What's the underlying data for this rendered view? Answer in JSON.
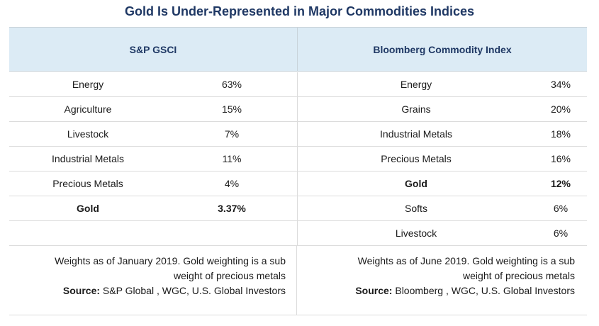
{
  "title": "Gold Is Under-Represented in Major Commodities Indices",
  "columns": {
    "left_header": "S&P GSCI",
    "right_header": "Bloomberg Commodity Index"
  },
  "rows": [
    {
      "left_cat": "Energy",
      "left_val": "63%",
      "right_cat": "Energy",
      "right_val": "34%"
    },
    {
      "left_cat": "Agriculture",
      "left_val": "15%",
      "right_cat": "Grains",
      "right_val": "20%"
    },
    {
      "left_cat": "Livestock",
      "left_val": "7%",
      "right_cat": "Industrial Metals",
      "right_val": "18%"
    },
    {
      "left_cat": "Industrial Metals",
      "left_val": "11%",
      "right_cat": "Precious Metals",
      "right_val": "16%"
    },
    {
      "left_cat": "Precious Metals",
      "left_val": "4%",
      "right_cat": "Gold",
      "right_val": "12%"
    },
    {
      "left_cat": "Gold",
      "left_val": "3.37%",
      "right_cat": "Softs",
      "right_val": "6%"
    },
    {
      "left_cat": "",
      "left_val": "",
      "right_cat": "Livestock",
      "right_val": "6%"
    }
  ],
  "notes": {
    "left": {
      "line1": "Weights as of January 2019. Gold weighting is a sub",
      "line2": "weight of precious metals",
      "source_label": "Source:",
      "source_text": " S&P Global , WGC, U.S. Global Investors"
    },
    "right": {
      "line1": "Weights as of June 2019. Gold weighting is a sub",
      "line2": "weight of precious metals",
      "source_label": "Source:",
      "source_text": " Bloomberg , WGC, U.S. Global Investors"
    }
  }
}
